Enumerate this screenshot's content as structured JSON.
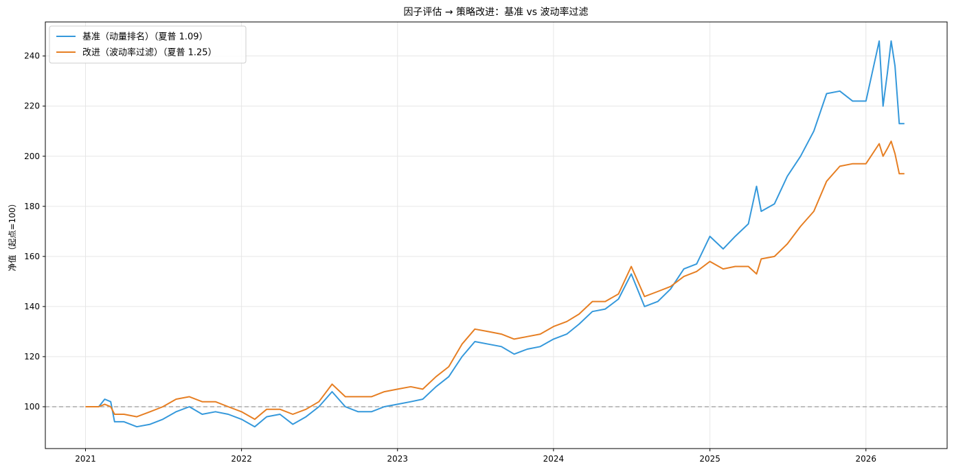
{
  "chart_data": {
    "type": "line",
    "title": "因子评估 → 策略改进：基准 vs 波动率过滤",
    "xlabel": "",
    "ylabel": "净值（起点=100）",
    "x_ticks": [
      "2021",
      "2022",
      "2023",
      "2024",
      "2025",
      "2026"
    ],
    "y_ticks": [
      100,
      120,
      140,
      160,
      180,
      200,
      220,
      240
    ],
    "xlim": [
      "2020-09-29",
      "2026-07-10"
    ],
    "ylim": [
      83.3,
      253.6
    ],
    "grid": true,
    "legend_position": "top-left",
    "reference_line": {
      "y": 100,
      "style": "dashed",
      "color": "#aaaaaa"
    },
    "series": [
      {
        "name": "基准（动量排名）（夏普 1.09）",
        "color": "#3498db",
        "points": [
          [
            "2021-01-01",
            100
          ],
          [
            "2021-02-01",
            100
          ],
          [
            "2021-02-15",
            103
          ],
          [
            "2021-03-01",
            102
          ],
          [
            "2021-03-10",
            94
          ],
          [
            "2021-04-01",
            94
          ],
          [
            "2021-05-01",
            92
          ],
          [
            "2021-06-01",
            93
          ],
          [
            "2021-07-01",
            95
          ],
          [
            "2021-08-01",
            98
          ],
          [
            "2021-09-01",
            100
          ],
          [
            "2021-10-01",
            97
          ],
          [
            "2021-11-01",
            98
          ],
          [
            "2021-12-01",
            97
          ],
          [
            "2022-01-01",
            95
          ],
          [
            "2022-02-01",
            92
          ],
          [
            "2022-03-01",
            96
          ],
          [
            "2022-04-01",
            97
          ],
          [
            "2022-05-01",
            93
          ],
          [
            "2022-06-01",
            96
          ],
          [
            "2022-07-01",
            100
          ],
          [
            "2022-08-01",
            106
          ],
          [
            "2022-09-01",
            100
          ],
          [
            "2022-10-01",
            98
          ],
          [
            "2022-11-01",
            98
          ],
          [
            "2022-12-01",
            100
          ],
          [
            "2023-01-01",
            101
          ],
          [
            "2023-02-01",
            102
          ],
          [
            "2023-03-01",
            103
          ],
          [
            "2023-04-01",
            108
          ],
          [
            "2023-05-01",
            112
          ],
          [
            "2023-06-01",
            120
          ],
          [
            "2023-07-01",
            126
          ],
          [
            "2023-08-01",
            125
          ],
          [
            "2023-09-01",
            124
          ],
          [
            "2023-10-01",
            121
          ],
          [
            "2023-11-01",
            123
          ],
          [
            "2023-12-01",
            124
          ],
          [
            "2024-01-01",
            127
          ],
          [
            "2024-02-01",
            129
          ],
          [
            "2024-03-01",
            133
          ],
          [
            "2024-04-01",
            138
          ],
          [
            "2024-05-01",
            139
          ],
          [
            "2024-06-01",
            143
          ],
          [
            "2024-07-01",
            153
          ],
          [
            "2024-08-01",
            140
          ],
          [
            "2024-09-01",
            142
          ],
          [
            "2024-10-01",
            147
          ],
          [
            "2024-11-01",
            155
          ],
          [
            "2024-12-01",
            157
          ],
          [
            "2025-01-01",
            168
          ],
          [
            "2025-02-01",
            163
          ],
          [
            "2025-03-01",
            168
          ],
          [
            "2025-04-01",
            173
          ],
          [
            "2025-04-20",
            188
          ],
          [
            "2025-05-01",
            178
          ],
          [
            "2025-06-01",
            181
          ],
          [
            "2025-07-01",
            192
          ],
          [
            "2025-08-01",
            200
          ],
          [
            "2025-09-01",
            210
          ],
          [
            "2025-10-01",
            225
          ],
          [
            "2025-11-01",
            226
          ],
          [
            "2025-12-01",
            222
          ],
          [
            "2026-01-01",
            222
          ],
          [
            "2026-02-01",
            246
          ],
          [
            "2026-02-10",
            220
          ],
          [
            "2026-02-20",
            233
          ],
          [
            "2026-03-01",
            246
          ],
          [
            "2026-03-10",
            236
          ],
          [
            "2026-03-20",
            213
          ],
          [
            "2026-04-01",
            213
          ]
        ]
      },
      {
        "name": "改进（波动率过滤）（夏普 1.25）",
        "color": "#e67e22",
        "points": [
          [
            "2021-01-01",
            100
          ],
          [
            "2021-02-01",
            100
          ],
          [
            "2021-02-15",
            101
          ],
          [
            "2021-03-01",
            100
          ],
          [
            "2021-03-10",
            97
          ],
          [
            "2021-04-01",
            97
          ],
          [
            "2021-05-01",
            96
          ],
          [
            "2021-06-01",
            98
          ],
          [
            "2021-07-01",
            100
          ],
          [
            "2021-08-01",
            103
          ],
          [
            "2021-09-01",
            104
          ],
          [
            "2021-10-01",
            102
          ],
          [
            "2021-11-01",
            102
          ],
          [
            "2021-12-01",
            100
          ],
          [
            "2022-01-01",
            98
          ],
          [
            "2022-02-01",
            95
          ],
          [
            "2022-03-01",
            99
          ],
          [
            "2022-04-01",
            99
          ],
          [
            "2022-05-01",
            97
          ],
          [
            "2022-06-01",
            99
          ],
          [
            "2022-07-01",
            102
          ],
          [
            "2022-08-01",
            109
          ],
          [
            "2022-09-01",
            104
          ],
          [
            "2022-10-01",
            104
          ],
          [
            "2022-11-01",
            104
          ],
          [
            "2022-12-01",
            106
          ],
          [
            "2023-01-01",
            107
          ],
          [
            "2023-02-01",
            108
          ],
          [
            "2023-03-01",
            107
          ],
          [
            "2023-04-01",
            112
          ],
          [
            "2023-05-01",
            116
          ],
          [
            "2023-06-01",
            125
          ],
          [
            "2023-07-01",
            131
          ],
          [
            "2023-08-01",
            130
          ],
          [
            "2023-09-01",
            129
          ],
          [
            "2023-10-01",
            127
          ],
          [
            "2023-11-01",
            128
          ],
          [
            "2023-12-01",
            129
          ],
          [
            "2024-01-01",
            132
          ],
          [
            "2024-02-01",
            134
          ],
          [
            "2024-03-01",
            137
          ],
          [
            "2024-04-01",
            142
          ],
          [
            "2024-05-01",
            142
          ],
          [
            "2024-06-01",
            145
          ],
          [
            "2024-07-01",
            156
          ],
          [
            "2024-08-01",
            144
          ],
          [
            "2024-09-01",
            146
          ],
          [
            "2024-10-01",
            148
          ],
          [
            "2024-11-01",
            152
          ],
          [
            "2024-12-01",
            154
          ],
          [
            "2025-01-01",
            158
          ],
          [
            "2025-02-01",
            155
          ],
          [
            "2025-03-01",
            156
          ],
          [
            "2025-04-01",
            156
          ],
          [
            "2025-04-20",
            153
          ],
          [
            "2025-05-01",
            159
          ],
          [
            "2025-06-01",
            160
          ],
          [
            "2025-07-01",
            165
          ],
          [
            "2025-08-01",
            172
          ],
          [
            "2025-09-01",
            178
          ],
          [
            "2025-10-01",
            190
          ],
          [
            "2025-11-01",
            196
          ],
          [
            "2025-12-01",
            197
          ],
          [
            "2026-01-01",
            197
          ],
          [
            "2026-02-01",
            205
          ],
          [
            "2026-02-10",
            200
          ],
          [
            "2026-02-20",
            203
          ],
          [
            "2026-03-01",
            206
          ],
          [
            "2026-03-10",
            201
          ],
          [
            "2026-03-20",
            193
          ],
          [
            "2026-04-01",
            193
          ]
        ]
      }
    ]
  }
}
